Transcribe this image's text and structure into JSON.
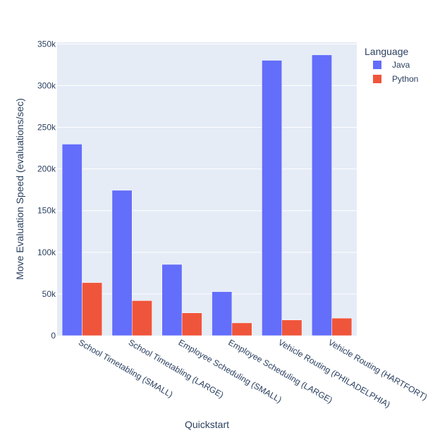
{
  "chart_data": {
    "type": "bar",
    "title": "",
    "xlabel": "Quickstart",
    "ylabel": "Move Evaluation Speed (evaluations/sec)",
    "categories": [
      "School Timetabling (SMALL)",
      "School Timetabling (LARGE)",
      "Employee Scheduling (SMALL)",
      "Employee Scheduling (LARGE)",
      "Vehicle Routing (PHILADELPHIA)",
      "Vehicle Routing (HARTFORT)"
    ],
    "series": [
      {
        "name": "Java",
        "color": "#636efa",
        "values": [
          229800,
          174400,
          85500,
          52800,
          330400,
          336900
        ]
      },
      {
        "name": "Python",
        "color": "#ef553b",
        "values": [
          63600,
          42000,
          27300,
          15300,
          18800,
          21000
        ]
      }
    ],
    "ylim": [
      0,
      352000
    ],
    "yticks": [
      0,
      50000,
      100000,
      150000,
      200000,
      250000,
      300000,
      350000
    ],
    "ytick_labels": [
      "0",
      "50k",
      "100k",
      "150k",
      "200k",
      "250k",
      "300k",
      "350k"
    ],
    "grid": true,
    "legend": {
      "title": "Language",
      "placement": "top-right"
    },
    "background": "#e5ecf6"
  }
}
